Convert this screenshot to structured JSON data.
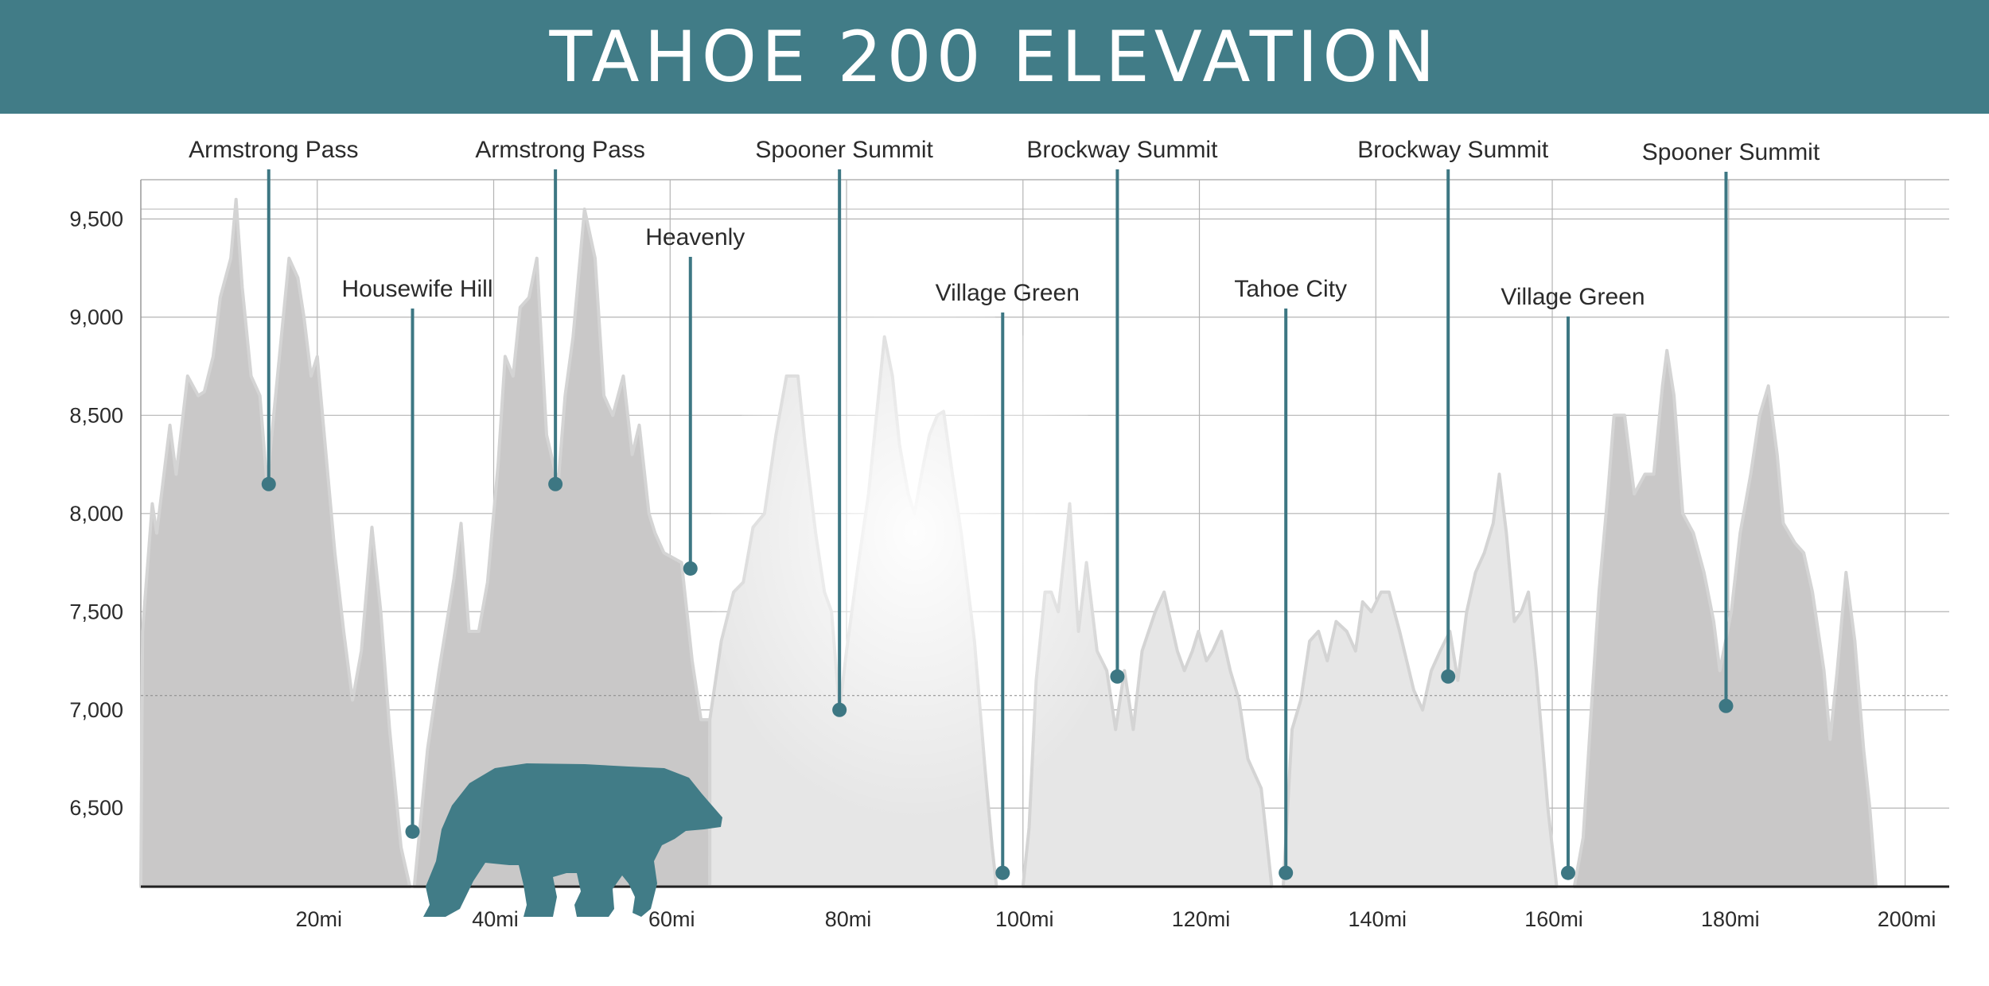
{
  "title": "TAHOE 200 ELEVATION",
  "colors": {
    "banner": "#417c87",
    "accent": "#3d7783",
    "area": "#c9c8c8",
    "area_light": "#e6e6e6",
    "grid": "#b4b4b4"
  },
  "chart_data": {
    "type": "area",
    "title": "TAHOE 200 ELEVATION",
    "xlabel": "",
    "ylabel": "",
    "xlim": [
      0,
      205
    ],
    "ylim": [
      6100,
      9700
    ],
    "x_ticks": [
      20,
      40,
      60,
      80,
      100,
      120,
      140,
      160,
      180,
      200
    ],
    "x_tick_labels": [
      "20mi",
      "40mi",
      "60mi",
      "80mi",
      "100mi",
      "120mi",
      "140mi",
      "160mi",
      "180mi",
      "200mi"
    ],
    "y_ticks": [
      6500,
      7000,
      7500,
      8000,
      8500,
      9000,
      9500
    ],
    "y_tick_labels": [
      "6,500",
      "7,000",
      "7,500",
      "8,000",
      "8,500",
      "9,000",
      "9,500"
    ],
    "grid": true,
    "series": [
      {
        "segment": 1,
        "shade": "dark",
        "points": [
          [
            0,
            6100
          ],
          [
            0.2,
            7400
          ],
          [
            1.3,
            8050
          ],
          [
            1.8,
            7900
          ],
          [
            3.3,
            8450
          ],
          [
            4,
            8200
          ],
          [
            5.3,
            8700
          ],
          [
            6.5,
            8600
          ],
          [
            7.2,
            8620
          ],
          [
            8.2,
            8800
          ],
          [
            9,
            9100
          ],
          [
            10.2,
            9300
          ],
          [
            10.8,
            9600
          ],
          [
            11.5,
            9150
          ],
          [
            12.5,
            8700
          ],
          [
            13.5,
            8600
          ],
          [
            14.3,
            8150
          ],
          [
            15.6,
            8750
          ],
          [
            16.8,
            9300
          ],
          [
            17.8,
            9200
          ],
          [
            18.5,
            9000
          ],
          [
            19.3,
            8700
          ],
          [
            20,
            8800
          ],
          [
            21,
            8300
          ],
          [
            22,
            7800
          ],
          [
            23,
            7400
          ],
          [
            24,
            7050
          ],
          [
            25,
            7300
          ],
          [
            26.2,
            7930
          ],
          [
            27.2,
            7500
          ],
          [
            28.2,
            6900
          ],
          [
            29.5,
            6300
          ],
          [
            30.5,
            6100
          ]
        ]
      },
      {
        "segment": 2,
        "shade": "dark",
        "points": [
          [
            31,
            6100
          ],
          [
            32.5,
            6800
          ],
          [
            33.8,
            7200
          ],
          [
            35.5,
            7670
          ],
          [
            36.3,
            7950
          ],
          [
            37.2,
            7400
          ],
          [
            38.3,
            7400
          ],
          [
            39.3,
            7650
          ],
          [
            40.5,
            8250
          ],
          [
            41.3,
            8800
          ],
          [
            42.2,
            8700
          ],
          [
            43,
            9050
          ],
          [
            44,
            9100
          ],
          [
            44.9,
            9300
          ],
          [
            46,
            8400
          ],
          [
            47.3,
            8150
          ],
          [
            48.1,
            8600
          ],
          [
            49,
            8900
          ],
          [
            50.3,
            9550
          ],
          [
            51.5,
            9300
          ],
          [
            52.5,
            8600
          ],
          [
            53.5,
            8500
          ],
          [
            54.7,
            8700
          ],
          [
            55.7,
            8300
          ],
          [
            56.5,
            8450
          ],
          [
            57.6,
            8000
          ],
          [
            58.3,
            7900
          ],
          [
            59.3,
            7800
          ],
          [
            61.3,
            7750
          ],
          [
            62.5,
            7250
          ],
          [
            63.5,
            6950
          ],
          [
            64.5,
            6950
          ]
        ]
      },
      {
        "segment": 3,
        "shade": "light",
        "points": [
          [
            64.5,
            6950
          ],
          [
            65.8,
            7350
          ],
          [
            67.2,
            7600
          ],
          [
            68.3,
            7650
          ],
          [
            69.4,
            7930
          ],
          [
            70.7,
            8000
          ],
          [
            72,
            8400
          ],
          [
            73.2,
            8700
          ],
          [
            74.5,
            8700
          ],
          [
            75.3,
            8350
          ],
          [
            76.5,
            7900
          ],
          [
            77.5,
            7600
          ],
          [
            78.3,
            7500
          ],
          [
            79.2,
            7000
          ],
          [
            80,
            7300
          ],
          [
            81.2,
            7700
          ],
          [
            82.5,
            8100
          ],
          [
            83.4,
            8500
          ],
          [
            84.3,
            8900
          ],
          [
            85.2,
            8700
          ],
          [
            86,
            8350
          ],
          [
            87,
            8100
          ],
          [
            87.7,
            8000
          ],
          [
            88.5,
            8200
          ],
          [
            89.4,
            8400
          ],
          [
            90.3,
            8500
          ],
          [
            91,
            8520
          ],
          [
            92,
            8200
          ],
          [
            93,
            7900
          ],
          [
            94.5,
            7350
          ],
          [
            95.7,
            6700
          ],
          [
            96.5,
            6300
          ],
          [
            97,
            6100
          ]
        ]
      },
      {
        "segment": 4,
        "shade": "light",
        "points": [
          [
            100,
            6100
          ],
          [
            100.7,
            6400
          ],
          [
            101.5,
            7150
          ],
          [
            102.5,
            7600
          ],
          [
            103.2,
            7600
          ],
          [
            104,
            7500
          ],
          [
            105.3,
            8050
          ],
          [
            106.3,
            7400
          ],
          [
            107.2,
            7750
          ],
          [
            108.4,
            7300
          ],
          [
            109.5,
            7200
          ],
          [
            110.5,
            6900
          ],
          [
            111.5,
            7200
          ],
          [
            112.5,
            6900
          ],
          [
            113.5,
            7300
          ],
          [
            115,
            7500
          ],
          [
            116,
            7600
          ],
          [
            117.5,
            7300
          ],
          [
            118.3,
            7200
          ],
          [
            119.2,
            7300
          ],
          [
            119.9,
            7400
          ],
          [
            120.8,
            7250
          ],
          [
            121.5,
            7300
          ],
          [
            122.5,
            7400
          ],
          [
            123.5,
            7200
          ],
          [
            124.5,
            7050
          ],
          [
            125.5,
            6750
          ],
          [
            127,
            6600
          ],
          [
            128.2,
            6100
          ]
        ]
      },
      {
        "segment": 5,
        "shade": "light",
        "points": [
          [
            129.5,
            6100
          ],
          [
            130.5,
            6900
          ],
          [
            131.5,
            7050
          ],
          [
            132.5,
            7350
          ],
          [
            133.5,
            7400
          ],
          [
            134.5,
            7250
          ],
          [
            135.5,
            7450
          ],
          [
            136.7,
            7400
          ],
          [
            137.7,
            7300
          ],
          [
            138.5,
            7550
          ],
          [
            139.5,
            7500
          ],
          [
            140.6,
            7600
          ],
          [
            141.5,
            7600
          ],
          [
            142.7,
            7400
          ],
          [
            144.3,
            7100
          ],
          [
            145.3,
            7000
          ],
          [
            146.3,
            7200
          ],
          [
            147.3,
            7300
          ],
          [
            148.4,
            7400
          ],
          [
            149.3,
            7150
          ],
          [
            150.3,
            7500
          ],
          [
            151.3,
            7700
          ],
          [
            152.3,
            7800
          ],
          [
            153.3,
            7950
          ],
          [
            154,
            8200
          ],
          [
            154.8,
            7900
          ],
          [
            155.7,
            7450
          ],
          [
            156.5,
            7500
          ],
          [
            157.3,
            7600
          ],
          [
            158.2,
            7200
          ],
          [
            159.5,
            6500
          ],
          [
            160.5,
            6100
          ]
        ]
      },
      {
        "segment": 6,
        "shade": "dark",
        "points": [
          [
            162.5,
            6100
          ],
          [
            163.5,
            6350
          ],
          [
            164.5,
            7050
          ],
          [
            165.3,
            7600
          ],
          [
            166.3,
            8100
          ],
          [
            167,
            8500
          ],
          [
            168.2,
            8500
          ],
          [
            169.3,
            8100
          ],
          [
            170.5,
            8200
          ],
          [
            171.5,
            8200
          ],
          [
            172.5,
            8650
          ],
          [
            173,
            8830
          ],
          [
            173.8,
            8600
          ],
          [
            174.8,
            8000
          ],
          [
            176,
            7900
          ],
          [
            177.2,
            7700
          ],
          [
            178.3,
            7450
          ],
          [
            179,
            7200
          ],
          [
            180.3,
            7500
          ],
          [
            181.3,
            7900
          ],
          [
            182.5,
            8200
          ],
          [
            183.5,
            8500
          ],
          [
            184.5,
            8650
          ],
          [
            185.5,
            8300
          ],
          [
            186.2,
            7950
          ],
          [
            187.5,
            7850
          ],
          [
            188.5,
            7800
          ],
          [
            189.5,
            7600
          ],
          [
            190.8,
            7200
          ],
          [
            191.5,
            6850
          ],
          [
            192.3,
            7200
          ],
          [
            193.3,
            7700
          ],
          [
            194.3,
            7350
          ],
          [
            195.3,
            6800
          ],
          [
            196,
            6500
          ],
          [
            196.7,
            6100
          ]
        ]
      }
    ],
    "annotations": [
      {
        "label": "Armstrong Pass",
        "mile": 14.5,
        "elevation": 8150
      },
      {
        "label": "Housewife Hill",
        "mile": 30.8,
        "elevation": 6380
      },
      {
        "label": "Armstrong Pass",
        "mile": 47,
        "elevation": 8150
      },
      {
        "label": "Heavenly",
        "mile": 62.3,
        "elevation": 7720
      },
      {
        "label": "Spooner Summit",
        "mile": 79.2,
        "elevation": 7000
      },
      {
        "label": "Village Green",
        "mile": 97.7,
        "elevation": 6170
      },
      {
        "label": "Brockway Summit",
        "mile": 110.7,
        "elevation": 7170
      },
      {
        "label": "Tahoe City",
        "mile": 129.8,
        "elevation": 6170
      },
      {
        "label": "Brockway Summit",
        "mile": 148.2,
        "elevation": 7170
      },
      {
        "label": "Village Green",
        "mile": 161.8,
        "elevation": 6170
      },
      {
        "label": "Spooner Summit",
        "mile": 179.7,
        "elevation": 7020
      }
    ]
  }
}
